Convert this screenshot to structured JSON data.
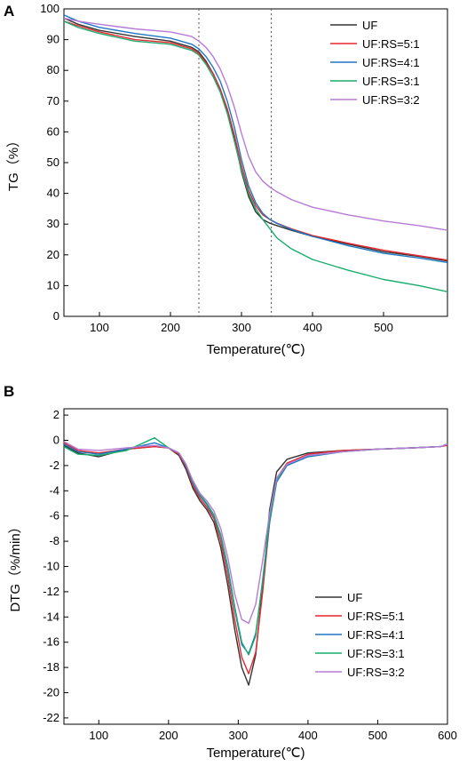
{
  "chart_data": [
    {
      "panel": "A",
      "type": "line",
      "xlabel": "Temperature(℃)",
      "ylabel": "TG（%）",
      "xlim": [
        50,
        590
      ],
      "ylim": [
        0,
        100
      ],
      "xticks": [
        100,
        200,
        300,
        400,
        500
      ],
      "yticks": [
        0,
        10,
        20,
        30,
        40,
        50,
        60,
        70,
        80,
        90,
        100
      ],
      "vlines": [
        240,
        342
      ],
      "legend_position": "top-right",
      "series": [
        {
          "name": "UF",
          "color": "#333333",
          "x": [
            50,
            70,
            100,
            150,
            200,
            230,
            240,
            250,
            260,
            270,
            280,
            290,
            300,
            310,
            320,
            330,
            340,
            350,
            370,
            400,
            450,
            500,
            550,
            590
          ],
          "y": [
            97,
            95,
            93,
            91,
            89.5,
            87.5,
            86,
            83,
            79,
            74,
            67,
            58,
            47,
            39,
            34,
            31.5,
            30.3,
            29.5,
            28,
            26,
            23.5,
            21,
            19.5,
            18
          ]
        },
        {
          "name": "UF:RS=5:1",
          "color": "#e8272f",
          "x": [
            50,
            70,
            100,
            150,
            200,
            230,
            240,
            250,
            260,
            270,
            280,
            290,
            300,
            310,
            320,
            330,
            340,
            350,
            370,
            400,
            450,
            500,
            550,
            590
          ],
          "y": [
            96,
            94.5,
            92.5,
            90,
            89,
            87,
            85.5,
            82.5,
            79,
            74,
            67.5,
            59,
            49,
            41,
            36,
            33,
            31.5,
            30.3,
            28.5,
            26.3,
            23.8,
            21.5,
            19.7,
            18.3
          ]
        },
        {
          "name": "UF:RS=4:1",
          "color": "#1f77c4",
          "x": [
            50,
            70,
            100,
            150,
            200,
            230,
            240,
            250,
            260,
            270,
            280,
            290,
            300,
            310,
            320,
            330,
            340,
            350,
            370,
            400,
            450,
            500,
            550,
            590
          ],
          "y": [
            98,
            96,
            94,
            92,
            90.5,
            88.5,
            87,
            84.5,
            81,
            76.5,
            70,
            61.5,
            51,
            42.5,
            37,
            33.5,
            31.5,
            30.2,
            28.3,
            26,
            23,
            20.5,
            19,
            17.5
          ]
        },
        {
          "name": "UF:RS=3:1",
          "color": "#1aab6e",
          "x": [
            50,
            70,
            100,
            150,
            200,
            230,
            240,
            250,
            260,
            270,
            280,
            290,
            300,
            310,
            320,
            330,
            340,
            350,
            370,
            400,
            450,
            500,
            550,
            590
          ],
          "y": [
            96,
            94,
            92,
            89.5,
            88.5,
            86.5,
            85,
            82,
            78,
            73,
            66,
            57,
            47.5,
            40,
            35,
            31.5,
            28.5,
            25.5,
            22,
            18.5,
            15,
            12,
            10,
            8
          ]
        },
        {
          "name": "UF:RS=3:2",
          "color": "#b77bd6",
          "x": [
            50,
            70,
            100,
            150,
            200,
            230,
            240,
            250,
            260,
            270,
            280,
            290,
            300,
            310,
            320,
            330,
            340,
            350,
            370,
            400,
            450,
            500,
            550,
            590
          ],
          "y": [
            97,
            96,
            95,
            93.5,
            92.5,
            91,
            89.5,
            87.5,
            84.5,
            80.5,
            75,
            68,
            59.5,
            52,
            47,
            44,
            42,
            40.5,
            38,
            35.5,
            33,
            31,
            29.5,
            28
          ]
        }
      ]
    },
    {
      "panel": "B",
      "type": "line",
      "xlabel": "Temperature(℃)",
      "ylabel": "DTG（%/min）",
      "xlim": [
        50,
        600
      ],
      "ylim": [
        -22.5,
        2.5
      ],
      "xticks": [
        100,
        200,
        300,
        400,
        500,
        600
      ],
      "yticks": [
        2,
        0,
        -2,
        -4,
        -6,
        -8,
        -10,
        -12,
        -14,
        -16,
        -18,
        -20,
        -22
      ],
      "legend_position": "right",
      "series": [
        {
          "name": "UF",
          "color": "#333333",
          "x": [
            50,
            70,
            100,
            140,
            180,
            200,
            215,
            225,
            235,
            245,
            255,
            265,
            275,
            285,
            295,
            305,
            315,
            325,
            335,
            345,
            355,
            370,
            400,
            450,
            500,
            550,
            590,
            600
          ],
          "y": [
            -0.4,
            -1.0,
            -1.3,
            -0.7,
            -0.5,
            -0.6,
            -1.2,
            -2.3,
            -3.8,
            -4.8,
            -5.5,
            -6.5,
            -8.5,
            -11.5,
            -15.0,
            -18.0,
            -19.4,
            -17.0,
            -11.5,
            -5.5,
            -2.5,
            -1.5,
            -1.0,
            -0.8,
            -0.7,
            -0.6,
            -0.5,
            -0.3
          ]
        },
        {
          "name": "UF:RS=5:1",
          "color": "#e8272f",
          "x": [
            50,
            70,
            100,
            140,
            180,
            200,
            215,
            225,
            235,
            245,
            255,
            265,
            275,
            285,
            295,
            305,
            315,
            325,
            335,
            345,
            355,
            370,
            400,
            450,
            500,
            550,
            590,
            600
          ],
          "y": [
            -0.2,
            -0.8,
            -1.0,
            -0.7,
            -0.5,
            -0.6,
            -1.1,
            -2.1,
            -3.6,
            -4.6,
            -5.3,
            -6.2,
            -8.0,
            -10.8,
            -14.2,
            -17.2,
            -18.5,
            -16.8,
            -12.0,
            -6.5,
            -3.0,
            -1.8,
            -1.1,
            -0.8,
            -0.7,
            -0.6,
            -0.5,
            -0.4
          ]
        },
        {
          "name": "UF:RS=4:1",
          "color": "#1f77c4",
          "x": [
            50,
            70,
            100,
            140,
            180,
            200,
            215,
            225,
            235,
            245,
            255,
            265,
            275,
            285,
            295,
            305,
            315,
            325,
            335,
            345,
            355,
            370,
            400,
            450,
            500,
            550,
            590,
            600
          ],
          "y": [
            -0.3,
            -0.9,
            -1.1,
            -0.7,
            -0.2,
            -0.6,
            -1.0,
            -2.0,
            -3.4,
            -4.4,
            -5.1,
            -6.0,
            -7.6,
            -10.2,
            -13.4,
            -16.2,
            -16.9,
            -15.3,
            -11.2,
            -6.5,
            -3.3,
            -2.0,
            -1.3,
            -0.9,
            -0.7,
            -0.6,
            -0.5,
            -0.3
          ]
        },
        {
          "name": "UF:RS=3:1",
          "color": "#1aab6e",
          "x": [
            50,
            70,
            100,
            140,
            180,
            200,
            215,
            225,
            235,
            245,
            255,
            265,
            275,
            285,
            295,
            305,
            315,
            325,
            335,
            345,
            355,
            370,
            400,
            450,
            500,
            550,
            590,
            600
          ],
          "y": [
            -0.5,
            -1.1,
            -1.2,
            -0.8,
            0.2,
            -0.6,
            -1.0,
            -1.9,
            -3.3,
            -4.3,
            -5.0,
            -5.9,
            -7.5,
            -10.0,
            -13.2,
            -16.0,
            -17.0,
            -15.5,
            -11.0,
            -6.2,
            -3.1,
            -1.9,
            -1.2,
            -0.9,
            -0.7,
            -0.6,
            -0.5,
            -0.3
          ]
        },
        {
          "name": "UF:RS=3:2",
          "color": "#b77bd6",
          "x": [
            50,
            70,
            100,
            140,
            180,
            200,
            215,
            225,
            235,
            245,
            255,
            265,
            275,
            285,
            295,
            305,
            315,
            325,
            335,
            345,
            355,
            370,
            400,
            450,
            500,
            550,
            590,
            600
          ],
          "y": [
            -0.1,
            -0.7,
            -0.8,
            -0.6,
            -0.4,
            -0.6,
            -1.0,
            -1.9,
            -3.2,
            -4.2,
            -4.8,
            -5.6,
            -7.0,
            -9.3,
            -12.2,
            -14.2,
            -14.5,
            -13.0,
            -9.5,
            -5.8,
            -3.0,
            -1.9,
            -1.2,
            -0.9,
            -0.7,
            -0.6,
            -0.5,
            -0.3
          ]
        }
      ]
    }
  ]
}
